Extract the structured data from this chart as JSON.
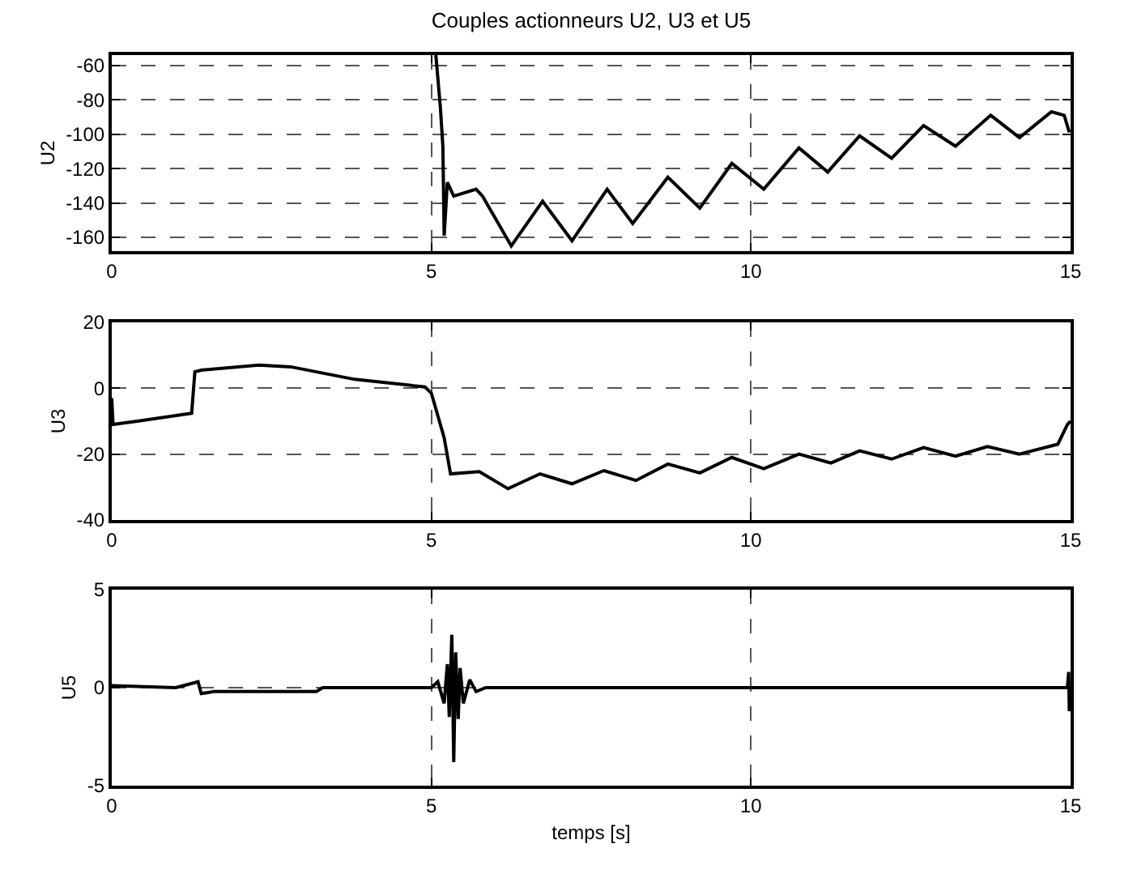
{
  "chart_data": [
    {
      "type": "line",
      "title": "Couples actionneurs U2, U3 et U5",
      "ylabel": "U2",
      "xlim": [
        0,
        15
      ],
      "xticks": [
        0,
        5,
        10,
        15
      ],
      "ylim": [
        -168,
        -54
      ],
      "yticks": [
        -160,
        -140,
        -120,
        -100,
        -80,
        -60
      ],
      "grid": true,
      "line_style": "solid",
      "marker": "none",
      "x": [
        5.07,
        5.14,
        5.18,
        5.2,
        5.25,
        5.35,
        5.7,
        5.8,
        6.25,
        6.74,
        7.2,
        7.75,
        8.15,
        8.7,
        9.2,
        9.7,
        10.2,
        10.75,
        11.2,
        11.7,
        12.2,
        12.7,
        13.2,
        13.75,
        14.2,
        14.7,
        14.9,
        14.98
      ],
      "series": [
        {
          "color": "#000000",
          "values": [
            -54,
            -84,
            -107,
            -159,
            -128,
            -136,
            -132,
            -136,
            -165,
            -139,
            -162,
            -132,
            -152,
            -125,
            -143,
            -117,
            -132,
            -108,
            -122,
            -101,
            -114,
            -95,
            -107,
            -89,
            -102,
            -87,
            -89,
            -99
          ]
        }
      ]
    },
    {
      "type": "line",
      "ylabel": "U3",
      "xlim": [
        0,
        15
      ],
      "xticks": [
        0,
        5,
        10,
        15
      ],
      "ylim": [
        -40,
        20
      ],
      "yticks": [
        -40,
        -20,
        0,
        20
      ],
      "grid": true,
      "line_style": "solid",
      "marker": "none",
      "x": [
        0,
        0.02,
        0.4,
        1.25,
        1.3,
        1.4,
        2.3,
        2.8,
        3.8,
        4.9,
        5.0,
        5.2,
        5.3,
        5.75,
        6.2,
        6.7,
        7.2,
        7.7,
        8.2,
        8.7,
        9.2,
        9.7,
        10.2,
        10.75,
        11.25,
        11.7,
        12.2,
        12.7,
        13.2,
        13.7,
        14.2,
        14.8,
        14.95,
        15
      ],
      "series": [
        {
          "color": "#000000",
          "values": [
            -3,
            -11,
            -10,
            -7.6,
            5,
            5.5,
            7,
            6.5,
            2.7,
            0.4,
            -1.5,
            -15,
            -26,
            -25.3,
            -30.5,
            -26,
            -29,
            -25,
            -28,
            -23,
            -25.7,
            -21,
            -24.4,
            -20,
            -22.7,
            -19,
            -21.5,
            -18,
            -20.6,
            -17.7,
            -20,
            -17,
            -11,
            -10
          ]
        }
      ]
    },
    {
      "type": "line",
      "ylabel": "U5",
      "xlabel": "temps [s]",
      "xlim": [
        0,
        15
      ],
      "xticks": [
        0,
        5,
        10,
        15
      ],
      "ylim": [
        -5,
        5
      ],
      "yticks": [
        -5,
        0,
        5
      ],
      "grid": true,
      "line_style": "solid",
      "marker": "none",
      "x": [
        0,
        1,
        1.35,
        1.4,
        1.6,
        3.2,
        3.3,
        5.0,
        5.1,
        5.2,
        5.25,
        5.28,
        5.32,
        5.35,
        5.38,
        5.42,
        5.45,
        5.5,
        5.6,
        5.7,
        5.85,
        14.95,
        14.97,
        14.98,
        15
      ],
      "series": [
        {
          "color": "#000000",
          "values": [
            0.1,
            0,
            0.3,
            -0.3,
            -0.2,
            -0.2,
            0,
            0,
            0.3,
            -0.8,
            1.2,
            -1.5,
            2.7,
            -3.8,
            1.8,
            -1.6,
            1,
            -0.8,
            0.4,
            -0.2,
            0,
            0,
            0.8,
            -1.2,
            0
          ]
        }
      ]
    }
  ]
}
